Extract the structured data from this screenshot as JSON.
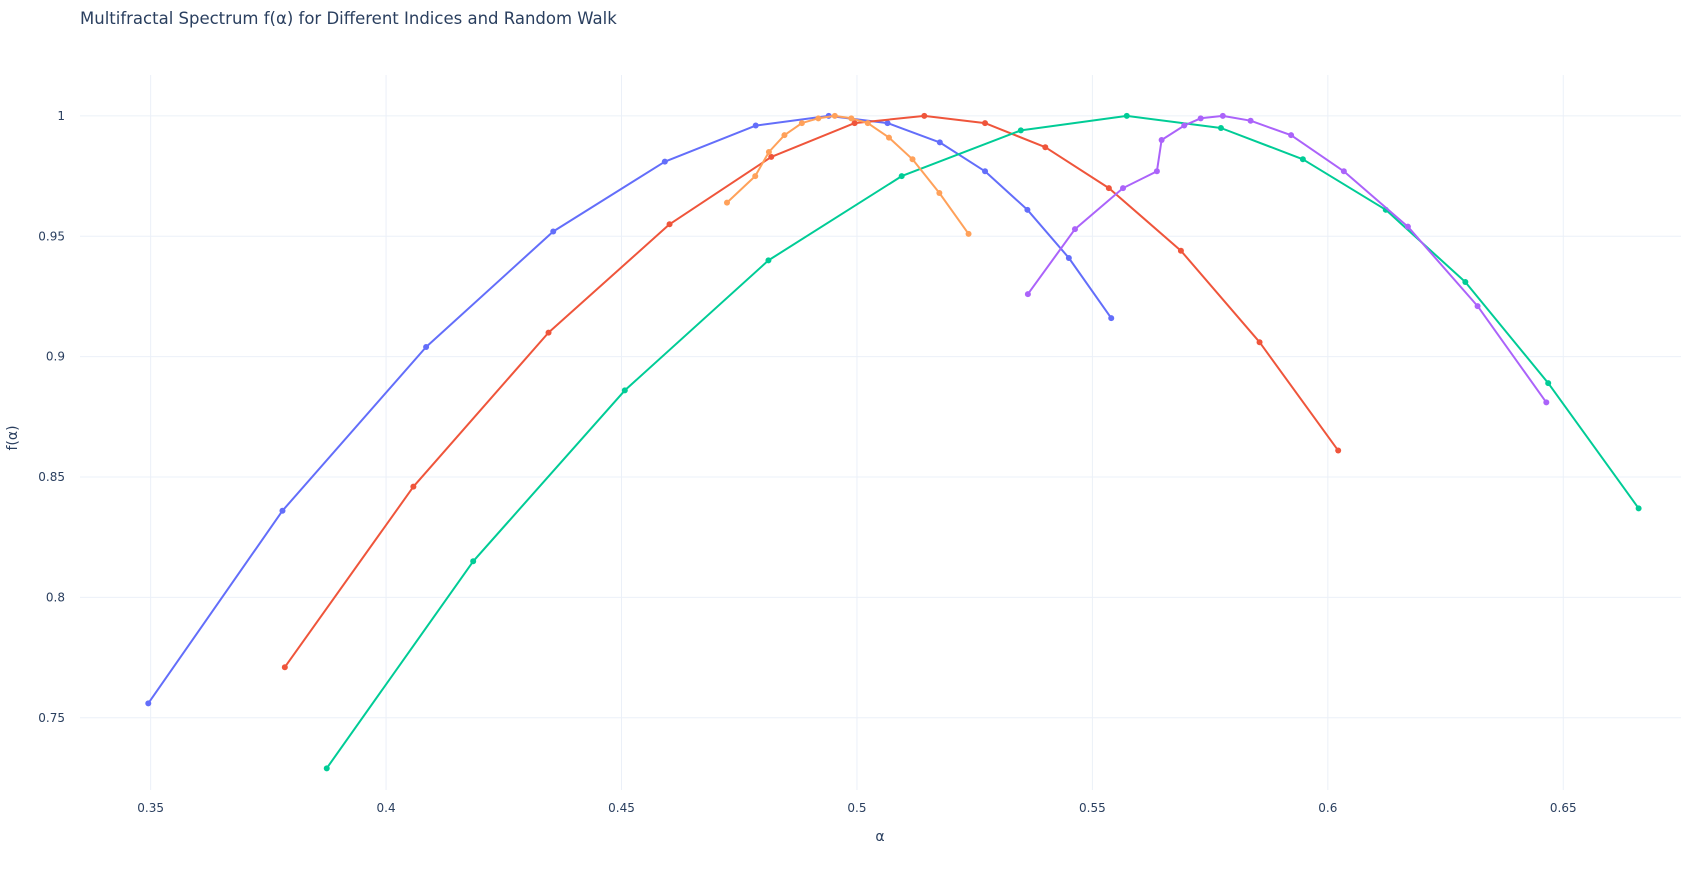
{
  "chart_data": {
    "type": "line",
    "title": "Multifractal Spectrum f(α) for Different Indices and Random Walk",
    "xlabel": "α",
    "ylabel": "f(α)",
    "xlim": [
      0.335,
      0.675
    ],
    "ylim": [
      0.72,
      1.017
    ],
    "x_ticks": [
      0.35,
      0.4,
      0.45,
      0.5,
      0.55,
      0.6,
      0.65
    ],
    "x_tick_labels": [
      "0.35",
      "0.4",
      "0.45",
      "0.5",
      "0.55",
      "0.6",
      "0.65"
    ],
    "y_ticks": [
      0.75,
      0.8,
      0.85,
      0.9,
      0.95,
      1
    ],
    "y_tick_labels": [
      "0.75",
      "0.8",
      "0.85",
      "0.9",
      "0.95",
      "1"
    ],
    "grid": true,
    "series": [
      {
        "color": "#636efa",
        "x": [
          0.3495,
          0.378,
          0.4085,
          0.4355,
          0.4592,
          0.4785,
          0.494,
          0.5065,
          0.5176,
          0.5272,
          0.5362,
          0.545,
          0.554
        ],
        "y": [
          0.756,
          0.836,
          0.904,
          0.952,
          0.981,
          0.996,
          1.0,
          0.997,
          0.989,
          0.977,
          0.961,
          0.941,
          0.916
        ]
      },
      {
        "color": "#ef553b",
        "x": [
          0.3785,
          0.4058,
          0.4345,
          0.4602,
          0.4818,
          0.4995,
          0.5143,
          0.5272,
          0.54,
          0.5535,
          0.5688,
          0.5855,
          0.6022
        ],
        "y": [
          0.771,
          0.846,
          0.91,
          0.955,
          0.983,
          0.997,
          1.0,
          0.997,
          0.987,
          0.97,
          0.944,
          0.906,
          0.861
        ]
      },
      {
        "color": "#00cc96",
        "x": [
          0.3874,
          0.4185,
          0.4507,
          0.4812,
          0.5095,
          0.5348,
          0.5573,
          0.5773,
          0.5947,
          0.6123,
          0.6292,
          0.6468,
          0.666
        ],
        "y": [
          0.729,
          0.815,
          0.886,
          0.94,
          0.975,
          0.994,
          1.0,
          0.995,
          0.982,
          0.961,
          0.931,
          0.889,
          0.837
        ]
      },
      {
        "color": "#ab63fa",
        "x": [
          0.5363,
          0.5463,
          0.5565,
          0.5637,
          0.5647,
          0.5695,
          0.573,
          0.5777,
          0.5836,
          0.5922,
          0.6034,
          0.617,
          0.6318,
          0.6464
        ],
        "y": [
          0.926,
          0.953,
          0.97,
          0.977,
          0.99,
          0.996,
          0.999,
          1.0,
          0.998,
          0.992,
          0.977,
          0.954,
          0.921,
          0.881
        ]
      },
      {
        "color": "#ffa15a",
        "x": [
          0.4724,
          0.4784,
          0.4813,
          0.4846,
          0.4883,
          0.4918,
          0.4953,
          0.4988,
          0.5023,
          0.5068,
          0.5118,
          0.5175,
          0.5237
        ],
        "y": [
          0.964,
          0.975,
          0.985,
          0.992,
          0.997,
          0.999,
          1.0,
          0.999,
          0.997,
          0.991,
          0.982,
          0.968,
          0.951
        ]
      }
    ]
  }
}
